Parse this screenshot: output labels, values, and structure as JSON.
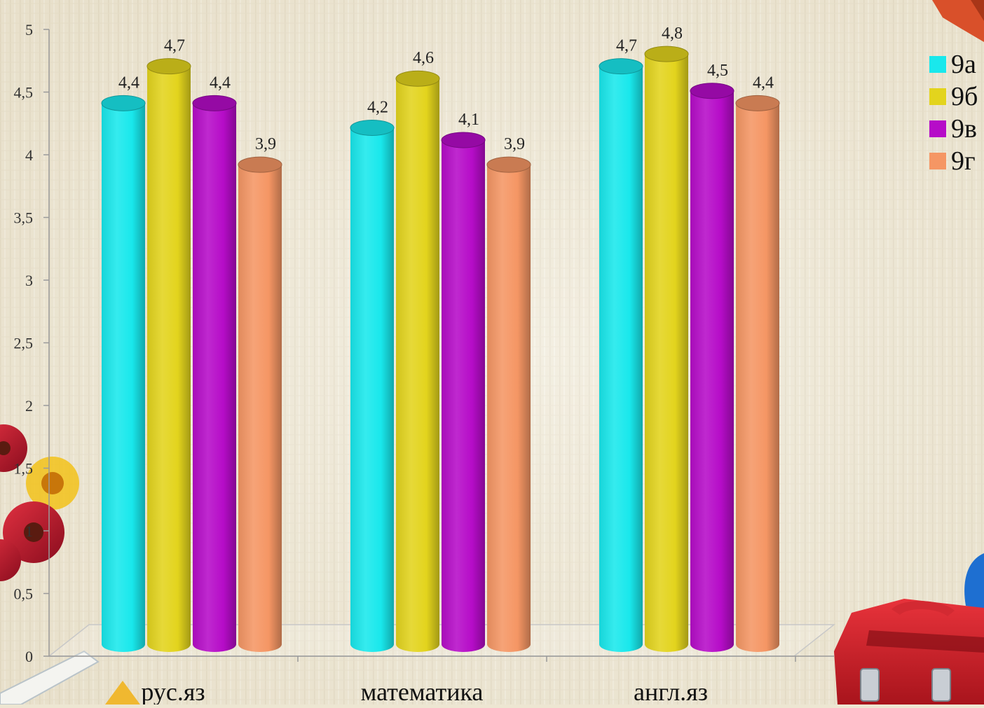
{
  "chart_data": {
    "type": "bar",
    "style": "3d-cylinder",
    "categories": [
      "рус.яз",
      "математика",
      "англ.яз"
    ],
    "series": [
      {
        "name": "9а",
        "color": "#19e8ec",
        "values": [
          4.4,
          4.2,
          4.7
        ],
        "labels": [
          "4,4",
          "4,2",
          "4,7"
        ]
      },
      {
        "name": "9б",
        "color": "#e3d41d",
        "values": [
          4.7,
          4.6,
          4.8
        ],
        "labels": [
          "4,7",
          "4,6",
          "4,8"
        ]
      },
      {
        "name": "9в",
        "color": "#b60cc8",
        "values": [
          4.4,
          4.1,
          4.5
        ],
        "labels": [
          "4,4",
          "4,1",
          "4,5"
        ]
      },
      {
        "name": "9г",
        "color": "#f59664",
        "values": [
          3.9,
          3.9,
          4.4
        ],
        "labels": [
          "3,9",
          "3,9",
          "4,4"
        ]
      }
    ],
    "ylim": [
      0,
      5
    ],
    "yticks": [
      0,
      0.5,
      1,
      1.5,
      2,
      2.5,
      3,
      3.5,
      4,
      4.5,
      5
    ],
    "ytick_labels": [
      "0",
      "0,5",
      "1",
      "1,5",
      "2",
      "2,5",
      "3",
      "3,5",
      "4",
      "4,5",
      "5"
    ],
    "grid": false,
    "legend": "right",
    "title": "",
    "xlabel": "",
    "ylabel": ""
  }
}
